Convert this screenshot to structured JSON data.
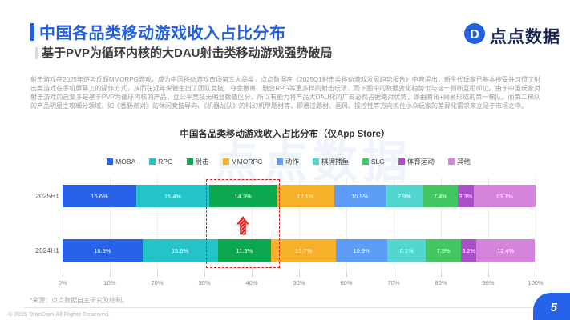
{
  "header": {
    "title": "中国各品类移动游戏收入占比分布",
    "subtitle": "基于PVP为循环内核的大DAU射击类移动游戏强势破局",
    "logo_text": "点点数据"
  },
  "intro_paragraph": "射击游戏在2025年逆势反超MMORPG游戏，成为中国移动游戏市场第三大品类，点点数据在《2025Q1射击类移动游戏发展趋势报告》中曾提出，新生代玩家已基本接受并习惯了射击类游戏在手机屏幕上的操作方式，从而在近年来催生出了团队竞技、夺金撤离、融合RPG等更多样的射击玩法，而下图中的数据变化趋势也与这一判断互相印证。由于中国玩家对射击游戏的启蒙多是基于PVP为循环内核的产品，且公平竞技无明显数值区分，所以有能力将产品大DAU化的厂商必然占据绝对优势，即由腾讯+网易形成的第一梯队。而第二梯队的产品明显主攻细分领域，如《香肠派对》的休闲竞技导向、《机器战队》的科幻机甲题材等，即通过题材、画风、操控性等方向抓住小众玩家的差异化需求来立足于市场之中。",
  "chart_data": {
    "type": "bar",
    "subtype": "horizontal-stacked",
    "title": "中国各品类移动游戏收入占比分布（仅App Store）",
    "categories": [
      "2025H1",
      "2024H1"
    ],
    "series": [
      {
        "name": "MOBA",
        "color": "#2862e9",
        "values": [
          15.6,
          16.9
        ]
      },
      {
        "name": "RPG",
        "color": "#25c4c9",
        "values": [
          15.4,
          15.9
        ]
      },
      {
        "name": "射击",
        "color": "#0ba84f",
        "values": [
          14.3,
          11.3
        ]
      },
      {
        "name": "MMORPG",
        "color": "#f6b02a",
        "values": [
          12.1,
          13.7
        ]
      },
      {
        "name": "动作",
        "color": "#5d9cf7",
        "values": [
          10.9,
          10.9
        ]
      },
      {
        "name": "棋牌捕鱼",
        "color": "#52d6cf",
        "values": [
          7.9,
          8.1
        ]
      },
      {
        "name": "SLG",
        "color": "#44c662",
        "values": [
          7.4,
          7.5
        ]
      },
      {
        "name": "体育运动",
        "color": "#ab4fc8",
        "values": [
          3.3,
          3.2
        ]
      },
      {
        "name": "其他",
        "color": "#d584dc",
        "values": [
          13.1,
          12.4
        ]
      }
    ],
    "x_ticks": [
      "0%",
      "10%",
      "20%",
      "30%",
      "40%",
      "50%",
      "60%",
      "70%",
      "80%",
      "90%",
      "100%"
    ],
    "xlim": [
      0,
      100
    ],
    "grid": true,
    "legend_position": "top",
    "value_suffix": "%",
    "highlight": {
      "series": "射击",
      "style": "red-dashed-box",
      "arrow": "up",
      "arrow_color": "#e02020"
    },
    "watermark_text": "点点数据"
  },
  "footer": {
    "footnote": "*来源：点点数据自主研究及绘制。",
    "copyright": "© 2025 DianDian.All Rights Reserved.",
    "page_number": "5"
  },
  "colors": {
    "accent_blue": "#2160e0",
    "highlight_red": "#e02020",
    "logo_navy": "#1a2550"
  }
}
